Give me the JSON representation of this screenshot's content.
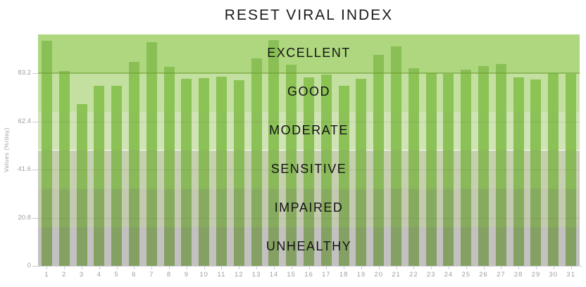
{
  "title": "RESET VIRAL INDEX",
  "colors": {
    "background": "#ffffff",
    "bar_green": "#8cc355",
    "band_line_green": "#6e9c32",
    "axis_text": "#9aa0a6",
    "title_text": "#1b1b1b",
    "baseline": "#cfd2d6"
  },
  "chart_data": {
    "type": "bar",
    "title": "RESET VIRAL INDEX",
    "xlabel": "",
    "ylabel": "Values (%/day)",
    "ylim": [
      0,
      100
    ],
    "grid": true,
    "legend": false,
    "yticks": [
      {
        "value": 0,
        "label": "0"
      },
      {
        "value": 20.8,
        "label": "20.8"
      },
      {
        "value": 41.6,
        "label": "41.6"
      },
      {
        "value": 62.4,
        "label": "62.4"
      },
      {
        "value": 83.2,
        "label": "83.2"
      }
    ],
    "main_threshold": 83.2,
    "categories": [
      "1",
      "2",
      "3",
      "4",
      "5",
      "6",
      "7",
      "8",
      "9",
      "10",
      "11",
      "12",
      "13",
      "14",
      "15",
      "16",
      "17",
      "18",
      "19",
      "20",
      "21",
      "22",
      "23",
      "24",
      "25",
      "26",
      "27",
      "28",
      "29",
      "30",
      "31"
    ],
    "values": [
      97.3,
      84.2,
      69.9,
      77.8,
      77.8,
      88.1,
      96.7,
      86.0,
      80.9,
      81.2,
      81.8,
      80.2,
      89.7,
      97.6,
      86.9,
      81.5,
      82.7,
      77.8,
      80.9,
      91.2,
      94.8,
      85.4,
      83.3,
      83.0,
      84.8,
      86.3,
      87.2,
      81.5,
      80.5,
      83.3,
      83.0
    ],
    "bands": [
      {
        "label": "EXCELLENT",
        "min": 83.33,
        "max": 100,
        "bg": "#aed77f",
        "bar": "#89bf55"
      },
      {
        "label": "GOOD",
        "min": 66.67,
        "max": 83.33,
        "bg": "#c3e0a1",
        "bar": "#8cc355"
      },
      {
        "label": "MODERATE",
        "min": 50,
        "max": 66.67,
        "bg": "#cfe3b5",
        "bar": "#8bc157"
      },
      {
        "label": "SENSITIVE",
        "min": 33.33,
        "max": 50,
        "bg": "#c6cfae",
        "bar": "#8ab95a"
      },
      {
        "label": "IMPAIRED",
        "min": 16.67,
        "max": 33.33,
        "bg": "#c4cab0",
        "bar": "#87ab5e"
      },
      {
        "label": "UNHEALTHY",
        "min": 0,
        "max": 16.67,
        "bg": "#c2c1bf",
        "bar": "#85a063"
      }
    ]
  }
}
